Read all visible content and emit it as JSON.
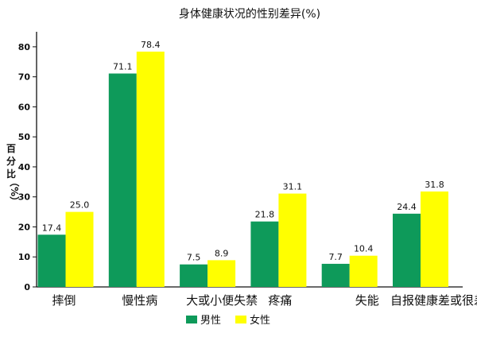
{
  "chart_data": {
    "type": "bar",
    "title": "身体健康状况的性别差异(%)",
    "ylabel": [
      "百",
      "分",
      "比",
      "（%）"
    ],
    "xlabel": "",
    "categories": [
      "摔倒",
      "慢性病",
      "大或小便失禁",
      "疼痛",
      "失能",
      "自报健康差或很差"
    ],
    "series": [
      {
        "name": "男性",
        "color": "#0e9a5a",
        "values": [
          17.4,
          71.1,
          7.5,
          21.8,
          7.7,
          24.4
        ]
      },
      {
        "name": "女性",
        "color": "#ffff00",
        "values": [
          25.0,
          78.4,
          8.9,
          31.1,
          10.4,
          31.8
        ]
      }
    ],
    "value_labels": [
      [
        "17.4",
        "71.1",
        "7.5",
        "21.8",
        "7.7",
        "24.4"
      ],
      [
        "25.0",
        "78.4",
        "8.9",
        "31.1",
        "10.4",
        "31.8"
      ]
    ],
    "ylim": [
      0,
      85
    ],
    "yticks": [
      0,
      10,
      20,
      30,
      40,
      50,
      60,
      70,
      80
    ],
    "grid": false,
    "legend": "bottom"
  }
}
